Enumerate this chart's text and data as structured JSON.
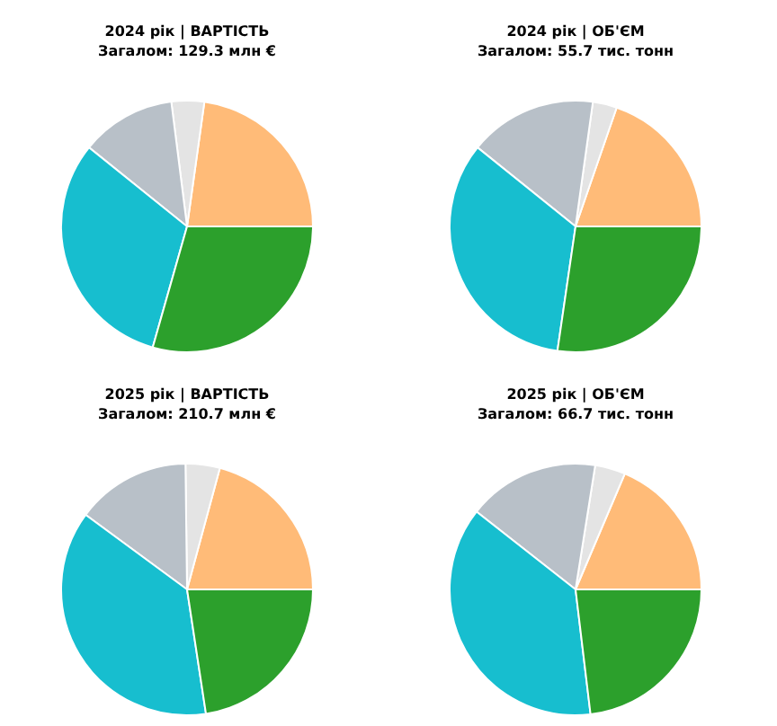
{
  "chart_data": [
    {
      "type": "pie",
      "title": "2024 рік | ВАРТІСТЬ",
      "subtitle": "Загалом: 129.3 млн €",
      "categories": [
        null,
        null,
        null,
        null,
        null
      ],
      "values": [
        22.8,
        4.2,
        12.2,
        31.4,
        29.4
      ],
      "colors": [
        "#ffbb78",
        "#e4e4e4",
        "#b8c0c8",
        "#17becf",
        "#2ca02c"
      ]
    },
    {
      "type": "pie",
      "title": "2024 рік | ОБ'ЄМ",
      "subtitle": "Загалом: 55.7 тис. тонн",
      "categories": [
        null,
        null,
        null,
        null,
        null
      ],
      "values": [
        19.7,
        3.1,
        16.4,
        33.5,
        27.3
      ],
      "colors": [
        "#ffbb78",
        "#e4e4e4",
        "#b8c0c8",
        "#17becf",
        "#2ca02c"
      ]
    },
    {
      "type": "pie",
      "title": "2025 рік | ВАРТІСТЬ",
      "subtitle": "Загалом: 210.7 млн €",
      "categories": [
        null,
        null,
        null,
        null,
        null
      ],
      "values": [
        20.8,
        4.4,
        14.7,
        37.5,
        22.6
      ],
      "colors": [
        "#ffbb78",
        "#e4e4e4",
        "#b8c0c8",
        "#17becf",
        "#2ca02c"
      ]
    },
    {
      "type": "pie",
      "title": "2025 рік | ОБ'ЄМ",
      "subtitle": "Загалом: 66.7 тис. тонн",
      "categories": [
        null,
        null,
        null,
        null,
        null
      ],
      "values": [
        18.6,
        3.9,
        16.9,
        37.5,
        23.1
      ],
      "colors": [
        "#ffbb78",
        "#e4e4e4",
        "#b8c0c8",
        "#17becf",
        "#2ca02c"
      ]
    }
  ]
}
